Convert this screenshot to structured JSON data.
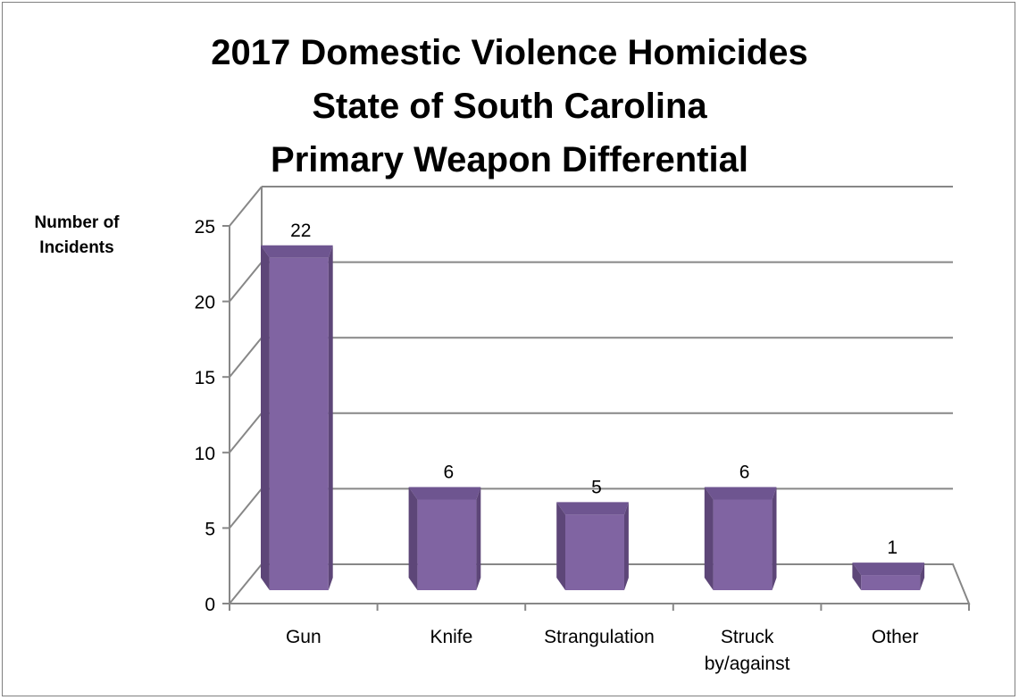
{
  "chart_data": {
    "type": "bar",
    "title_lines": [
      "2017 Domestic Violence Homicides",
      "State of South Carolina",
      "Primary Weapon Differential"
    ],
    "ylabel_lines": [
      "Number of",
      "Incidents"
    ],
    "xlabel": "",
    "categories": [
      [
        "Gun"
      ],
      [
        "Knife"
      ],
      [
        "Strangulation"
      ],
      [
        "Struck",
        "by/against"
      ],
      [
        "Other"
      ]
    ],
    "values": [
      22,
      6,
      5,
      6,
      1
    ],
    "data_labels": [
      "22",
      "6",
      "5",
      "6",
      "1"
    ],
    "ylim": [
      0,
      25
    ],
    "yticks": [
      0,
      5,
      10,
      15,
      20,
      25
    ],
    "grid": true,
    "legend": "none",
    "bar_style": "3d-column",
    "colors": {
      "bar_front": "#8064a2",
      "bar_side": "#5d4678",
      "bar_top": "#6e5590",
      "gridline": "#878787",
      "axis": "#878787"
    }
  }
}
